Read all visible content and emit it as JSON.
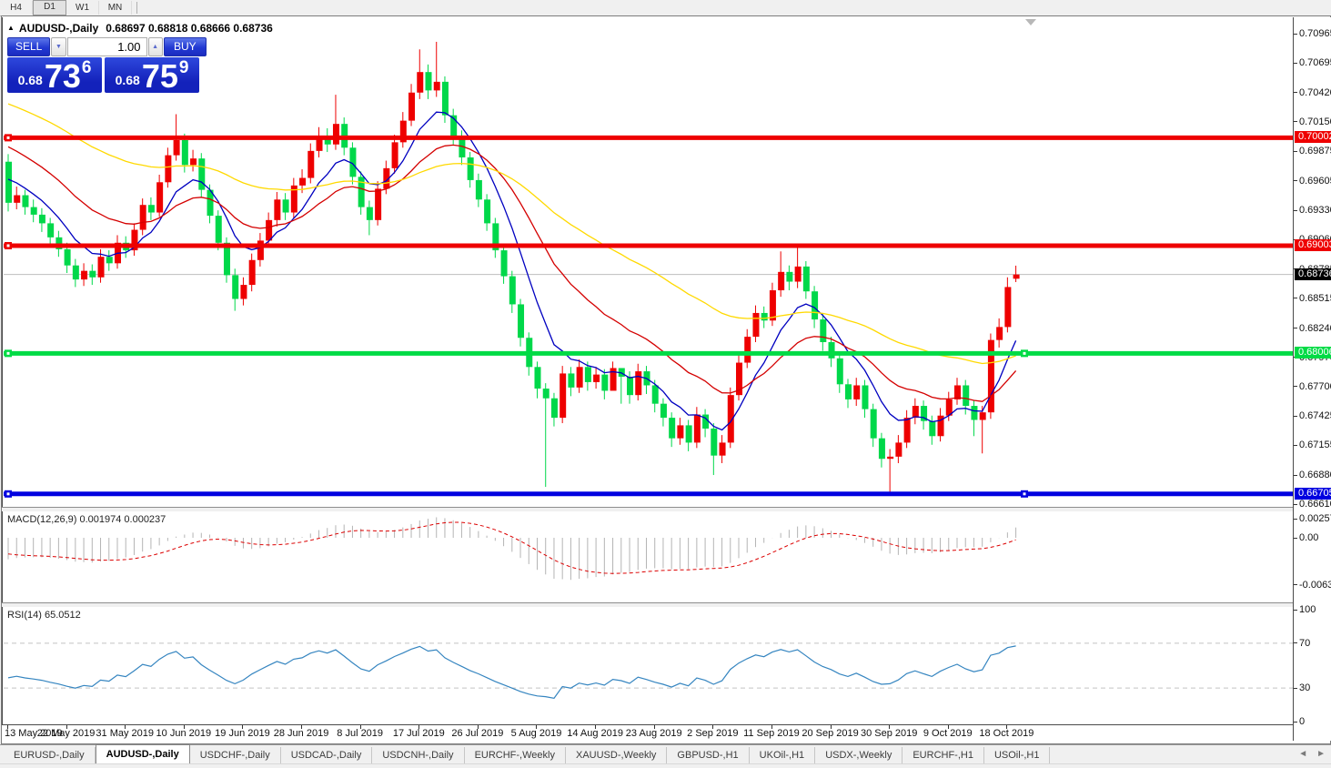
{
  "toolbar": {
    "timeframes": [
      {
        "label": "H4",
        "active": false
      },
      {
        "label": "D1",
        "active": true
      },
      {
        "label": "W1",
        "active": false
      },
      {
        "label": "MN",
        "active": false
      }
    ]
  },
  "window": {
    "title_symbol": "AUDUSD-,Daily",
    "title_ohlc": "0.68697 0.68818 0.68666 0.68736"
  },
  "icons": {
    "expand": "▲",
    "spin_up": "▲",
    "spin_down": "▼",
    "tab_prev": "◄",
    "tab_next": "►"
  },
  "trade_panel": {
    "sell_label": "SELL",
    "buy_label": "BUY",
    "volume": "1.00",
    "sell_price": {
      "prefix": "0.68",
      "big": "73",
      "sup": "6"
    },
    "buy_price": {
      "prefix": "0.68",
      "big": "75",
      "sup": "9"
    }
  },
  "colors": {
    "bull": "#EE0000",
    "bear": "#00D84A",
    "level_red": "#EE0000",
    "level_green": "#00DB45",
    "level_blue": "#0000E0",
    "current_line": "#BEBEBE",
    "current_tag_bg": "#000000",
    "ma_fast": "#0000C0",
    "ma_mid": "#D40000",
    "ma_slow": "#FFD900",
    "macd_hist": "#B4B4B4",
    "macd_signal": "#DC0000",
    "rsi_line": "#3585C0",
    "rsi_guide": "#C4C4C4"
  },
  "chart_data": {
    "type": "candlestick",
    "symbol": "AUDUSD",
    "timeframe": "Daily",
    "title": "AUDUSD-,Daily 0.68697 0.68818 0.68666 0.68736",
    "y_axis_ticks": [
      "0.70965",
      "0.70695",
      "0.70420",
      "0.70150",
      "0.69875",
      "0.69605",
      "0.69330",
      "0.69060",
      "0.68785",
      "0.68515",
      "0.68240",
      "0.67970",
      "0.67700",
      "0.67425",
      "0.67155",
      "0.66880",
      "0.66610"
    ],
    "y_range": [
      0.66585,
      0.71117
    ],
    "x_labels": [
      "13 May 2019",
      "22 May 2019",
      "31 May 2019",
      "10 Jun 2019",
      "19 Jun 2019",
      "28 Jun 2019",
      "8 Jul 2019",
      "17 Jul 2019",
      "26 Jul 2019",
      "5 Aug 2019",
      "14 Aug 2019",
      "23 Aug 2019",
      "2 Sep 2019",
      "11 Sep 2019",
      "20 Sep 2019",
      "30 Sep 2019",
      "9 Oct 2019",
      "18 Oct 2019"
    ],
    "bars_per_label": 7,
    "current_price": {
      "value": 0.68736,
      "label": "0.68736"
    },
    "levels": [
      {
        "value": 0.70002,
        "label": "0.70002",
        "color_key": "level_red",
        "handles": [
          "left"
        ]
      },
      {
        "value": 0.69003,
        "label": "0.69003",
        "color_key": "level_red",
        "handles": [
          "left"
        ]
      },
      {
        "value": 0.68006,
        "label": "0.68006",
        "color_key": "level_green",
        "handles": [
          "left",
          "right"
        ]
      },
      {
        "value": 0.66705,
        "label": "0.66705",
        "color_key": "level_blue",
        "handles": [
          "left",
          "right"
        ]
      }
    ],
    "overlays": [
      {
        "name": "ma-fast",
        "period": 8,
        "seed": 0.6968,
        "color_key": "ma_fast"
      },
      {
        "name": "ma-mid",
        "period": 21,
        "seed": 0.6997,
        "color_key": "ma_mid"
      },
      {
        "name": "ma-slow",
        "period": 55,
        "seed": 0.7035,
        "color_key": "ma_slow"
      }
    ],
    "ohlc": [
      [
        0.6978,
        0.6985,
        0.6932,
        0.694
      ],
      [
        0.694,
        0.6955,
        0.6934,
        0.6947
      ],
      [
        0.6947,
        0.6952,
        0.6929,
        0.6936
      ],
      [
        0.6936,
        0.6943,
        0.6922,
        0.6929
      ],
      [
        0.6929,
        0.6935,
        0.6913,
        0.6921
      ],
      [
        0.6921,
        0.6926,
        0.6901,
        0.6908
      ],
      [
        0.6908,
        0.6914,
        0.689,
        0.6897
      ],
      [
        0.6897,
        0.6903,
        0.6875,
        0.6882
      ],
      [
        0.6882,
        0.6888,
        0.6862,
        0.6869
      ],
      [
        0.6869,
        0.6884,
        0.6863,
        0.6877
      ],
      [
        0.6877,
        0.6883,
        0.6864,
        0.6871
      ],
      [
        0.6871,
        0.6897,
        0.6866,
        0.689
      ],
      [
        0.689,
        0.6896,
        0.6877,
        0.6884
      ],
      [
        0.6884,
        0.691,
        0.6879,
        0.6903
      ],
      [
        0.6903,
        0.6909,
        0.6889,
        0.6896
      ],
      [
        0.6896,
        0.6921,
        0.6891,
        0.6915
      ],
      [
        0.6915,
        0.6944,
        0.691,
        0.6938
      ],
      [
        0.6938,
        0.6945,
        0.6924,
        0.6931
      ],
      [
        0.6931,
        0.6966,
        0.6927,
        0.6959
      ],
      [
        0.6959,
        0.6991,
        0.6954,
        0.6984
      ],
      [
        0.6984,
        0.7022,
        0.6979,
        0.6998
      ],
      [
        0.6998,
        0.7004,
        0.6968,
        0.6975
      ],
      [
        0.6975,
        0.6989,
        0.6969,
        0.6981
      ],
      [
        0.6981,
        0.6986,
        0.6945,
        0.6952
      ],
      [
        0.6952,
        0.6957,
        0.6921,
        0.6928
      ],
      [
        0.6928,
        0.6933,
        0.6896,
        0.6903
      ],
      [
        0.6903,
        0.6908,
        0.6866,
        0.6873
      ],
      [
        0.6873,
        0.6879,
        0.684,
        0.6851
      ],
      [
        0.6851,
        0.6871,
        0.6845,
        0.6864
      ],
      [
        0.6864,
        0.6893,
        0.6858,
        0.6887
      ],
      [
        0.6887,
        0.6912,
        0.6881,
        0.6905
      ],
      [
        0.6905,
        0.6931,
        0.6899,
        0.6924
      ],
      [
        0.6924,
        0.695,
        0.6918,
        0.6943
      ],
      [
        0.6943,
        0.6949,
        0.6924,
        0.6931
      ],
      [
        0.6931,
        0.6963,
        0.6926,
        0.6956
      ],
      [
        0.6956,
        0.6971,
        0.6949,
        0.6963
      ],
      [
        0.6963,
        0.6995,
        0.6958,
        0.6988
      ],
      [
        0.6988,
        0.701,
        0.6982,
        0.7002
      ],
      [
        0.7002,
        0.7009,
        0.6987,
        0.6994
      ],
      [
        0.6994,
        0.704,
        0.6989,
        0.7013
      ],
      [
        0.7013,
        0.7019,
        0.6984,
        0.6991
      ],
      [
        0.6991,
        0.6996,
        0.6957,
        0.6964
      ],
      [
        0.6964,
        0.6969,
        0.6929,
        0.6936
      ],
      [
        0.6936,
        0.6942,
        0.691,
        0.6924
      ],
      [
        0.6924,
        0.696,
        0.6919,
        0.6953
      ],
      [
        0.6953,
        0.6979,
        0.6948,
        0.6972
      ],
      [
        0.6972,
        0.7003,
        0.6967,
        0.6996
      ],
      [
        0.6996,
        0.7024,
        0.6991,
        0.7016
      ],
      [
        0.7016,
        0.705,
        0.7011,
        0.7042
      ],
      [
        0.7042,
        0.7082,
        0.7036,
        0.7061
      ],
      [
        0.7061,
        0.7068,
        0.7036,
        0.7044
      ],
      [
        0.7044,
        0.7089,
        0.7038,
        0.7052
      ],
      [
        0.7052,
        0.7057,
        0.7014,
        0.7021
      ],
      [
        0.7021,
        0.7027,
        0.6994,
        0.7001
      ],
      [
        0.7001,
        0.7007,
        0.6975,
        0.6982
      ],
      [
        0.6982,
        0.6987,
        0.6954,
        0.6961
      ],
      [
        0.6961,
        0.6967,
        0.6936,
        0.6943
      ],
      [
        0.6943,
        0.6948,
        0.6914,
        0.6921
      ],
      [
        0.6921,
        0.6926,
        0.6889,
        0.6896
      ],
      [
        0.6896,
        0.6901,
        0.6865,
        0.6872
      ],
      [
        0.6872,
        0.6877,
        0.6838,
        0.6846
      ],
      [
        0.6846,
        0.6851,
        0.6807,
        0.6815
      ],
      [
        0.6815,
        0.682,
        0.678,
        0.6788
      ],
      [
        0.6788,
        0.6793,
        0.6759,
        0.6768
      ],
      [
        0.6768,
        0.6773,
        0.6677,
        0.6759
      ],
      [
        0.6759,
        0.6764,
        0.6733,
        0.6741
      ],
      [
        0.6741,
        0.6789,
        0.6736,
        0.6782
      ],
      [
        0.6782,
        0.6788,
        0.6761,
        0.6769
      ],
      [
        0.6769,
        0.6795,
        0.6764,
        0.6788
      ],
      [
        0.6788,
        0.6793,
        0.6766,
        0.6774
      ],
      [
        0.6774,
        0.6788,
        0.6768,
        0.6781
      ],
      [
        0.6781,
        0.6786,
        0.6758,
        0.6766
      ],
      [
        0.6766,
        0.6793,
        0.6771,
        0.6787
      ],
      [
        0.6787,
        0.6784,
        0.6754,
        0.6779
      ],
      [
        0.6779,
        0.6784,
        0.6754,
        0.6762
      ],
      [
        0.6762,
        0.6791,
        0.6757,
        0.6784
      ],
      [
        0.6784,
        0.6789,
        0.6763,
        0.6771
      ],
      [
        0.6771,
        0.6776,
        0.6746,
        0.6754
      ],
      [
        0.6754,
        0.6759,
        0.6733,
        0.6741
      ],
      [
        0.6741,
        0.6746,
        0.6714,
        0.6722
      ],
      [
        0.6722,
        0.6741,
        0.6716,
        0.6734
      ],
      [
        0.6734,
        0.6739,
        0.671,
        0.6718
      ],
      [
        0.6718,
        0.6751,
        0.6713,
        0.6744
      ],
      [
        0.6744,
        0.6749,
        0.6723,
        0.6731
      ],
      [
        0.6731,
        0.6736,
        0.6688,
        0.6706
      ],
      [
        0.6706,
        0.6725,
        0.6699,
        0.6718
      ],
      [
        0.6718,
        0.6769,
        0.6713,
        0.6762
      ],
      [
        0.6762,
        0.6799,
        0.6757,
        0.6792
      ],
      [
        0.6792,
        0.6823,
        0.6787,
        0.6816
      ],
      [
        0.6816,
        0.6845,
        0.6811,
        0.6838
      ],
      [
        0.6838,
        0.6844,
        0.6824,
        0.6831
      ],
      [
        0.6831,
        0.6866,
        0.6826,
        0.6859
      ],
      [
        0.6859,
        0.6895,
        0.6853,
        0.6876
      ],
      [
        0.6876,
        0.6882,
        0.6859,
        0.6867
      ],
      [
        0.6867,
        0.6899,
        0.6861,
        0.6881
      ],
      [
        0.6881,
        0.6886,
        0.6851,
        0.6858
      ],
      [
        0.6858,
        0.6863,
        0.6824,
        0.6832
      ],
      [
        0.6832,
        0.6837,
        0.6803,
        0.6811
      ],
      [
        0.6811,
        0.6816,
        0.6788,
        0.6796
      ],
      [
        0.6796,
        0.6801,
        0.6764,
        0.6772
      ],
      [
        0.6772,
        0.6777,
        0.675,
        0.6758
      ],
      [
        0.6758,
        0.6778,
        0.6752,
        0.6771
      ],
      [
        0.6771,
        0.6776,
        0.6741,
        0.6749
      ],
      [
        0.6749,
        0.6754,
        0.6714,
        0.6722
      ],
      [
        0.6722,
        0.6727,
        0.6695,
        0.6703
      ],
      [
        0.6703,
        0.6712,
        0.6671,
        0.6705
      ],
      [
        0.6705,
        0.6725,
        0.6699,
        0.6718
      ],
      [
        0.6718,
        0.6748,
        0.6713,
        0.6741
      ],
      [
        0.6741,
        0.6759,
        0.6735,
        0.6752
      ],
      [
        0.6752,
        0.6757,
        0.673,
        0.6738
      ],
      [
        0.6738,
        0.6743,
        0.6716,
        0.6724
      ],
      [
        0.6724,
        0.675,
        0.6719,
        0.6743
      ],
      [
        0.6743,
        0.6765,
        0.6738,
        0.6758
      ],
      [
        0.6758,
        0.6778,
        0.6753,
        0.6771
      ],
      [
        0.6771,
        0.6776,
        0.6744,
        0.6752
      ],
      [
        0.6752,
        0.6757,
        0.6724,
        0.6739
      ],
      [
        0.6739,
        0.6752,
        0.6708,
        0.6746
      ],
      [
        0.6746,
        0.6819,
        0.674,
        0.6813
      ],
      [
        0.6813,
        0.6833,
        0.6806,
        0.6825
      ],
      [
        0.6825,
        0.6871,
        0.682,
        0.6862
      ],
      [
        0.68697,
        0.68818,
        0.68666,
        0.68736
      ]
    ],
    "sub_charts": [
      {
        "type": "macd-histogram",
        "label": "MACD(12,26,9) 0.001974 0.000237",
        "params": [
          12,
          26,
          9
        ],
        "current_values": [
          0.001974,
          0.000237
        ],
        "axis_ticks": [
          {
            "value": 0.002574,
            "label": "0.002574"
          },
          {
            "value": 0,
            "label": "0.00"
          },
          {
            "value": -0.006326,
            "label": "-0.006326"
          }
        ]
      },
      {
        "type": "line",
        "label": "RSI(14) 65.0512",
        "period": 14,
        "current_value": 65.0512,
        "axis_ticks": [
          {
            "value": 100,
            "label": "100"
          },
          {
            "value": 70,
            "label": "70"
          },
          {
            "value": 30,
            "label": "30"
          },
          {
            "value": 0,
            "label": "0"
          }
        ],
        "guides": [
          70,
          30
        ]
      }
    ]
  },
  "tabs": [
    {
      "label": "EURUSD-,Daily",
      "active": false
    },
    {
      "label": "AUDUSD-,Daily",
      "active": true
    },
    {
      "label": "USDCHF-,Daily",
      "active": false
    },
    {
      "label": "USDCAD-,Daily",
      "active": false
    },
    {
      "label": "USDCNH-,Daily",
      "active": false
    },
    {
      "label": "EURCHF-,Weekly",
      "active": false
    },
    {
      "label": "XAUUSD-,Weekly",
      "active": false
    },
    {
      "label": "GBPUSD-,H1",
      "active": false
    },
    {
      "label": "UKOil-,H1",
      "active": false
    },
    {
      "label": "USDX-,Weekly",
      "active": false
    },
    {
      "label": "EURCHF-,H1",
      "active": false
    },
    {
      "label": "USOil-,H1",
      "active": false
    }
  ]
}
